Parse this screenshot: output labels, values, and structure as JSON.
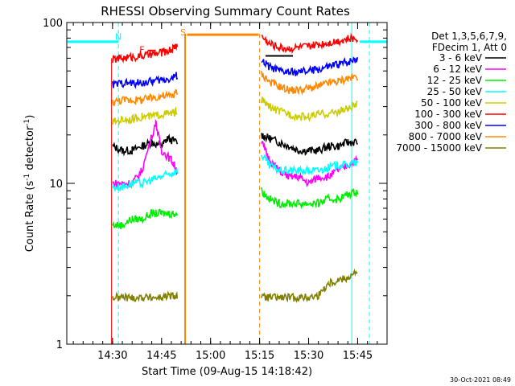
{
  "chart_data": {
    "type": "line",
    "title": "RHESSI Observing Summary Count Rates",
    "xlabel": "Start Time (09-Aug-15 14:18:42)",
    "ylabel": "Count Rate (s⁻¹ detector⁻¹)",
    "ylabel_main": "Count Rate (s",
    "ylabel_sup1": "-1",
    "ylabel_mid": " detector",
    "ylabel_sup2": "-1",
    "ylabel_end": ")",
    "yscale": "log",
    "ylim": [
      1,
      100
    ],
    "xlim_minutes": [
      14.2667,
      15.9
    ],
    "xticks": [
      {
        "label": "14:30",
        "value": 14.5
      },
      {
        "label": "14:45",
        "value": 14.75
      },
      {
        "label": "15:00",
        "value": 15.0
      },
      {
        "label": "15:15",
        "value": 15.25
      },
      {
        "label": "15:30",
        "value": 15.5
      },
      {
        "label": "15:45",
        "value": 15.75
      }
    ],
    "yticks": [
      {
        "label": "1",
        "value": 1
      },
      {
        "label": "10",
        "value": 10
      },
      {
        "label": "100",
        "value": 100
      }
    ],
    "legend_header": [
      "Det 1,3,5,6,7,9,",
      "FDecim 1, Att 0"
    ],
    "legend_position": "right",
    "series": [
      {
        "name": "3 - 6 keV",
        "color": "#000000",
        "seg1": [
          [
            14.5,
            17
          ],
          [
            14.55,
            16
          ],
          [
            14.6,
            16
          ],
          [
            14.65,
            17
          ],
          [
            14.7,
            18
          ],
          [
            14.75,
            17
          ],
          [
            14.78,
            19
          ],
          [
            14.83,
            18
          ]
        ],
        "seg2": [
          [
            15.26,
            20
          ],
          [
            15.3,
            19
          ],
          [
            15.35,
            18
          ],
          [
            15.4,
            17
          ],
          [
            15.45,
            16
          ],
          [
            15.5,
            16
          ],
          [
            15.55,
            16
          ],
          [
            15.6,
            17
          ],
          [
            15.65,
            17
          ],
          [
            15.7,
            18
          ],
          [
            15.75,
            18
          ]
        ]
      },
      {
        "name": "6 - 12 keV",
        "color": "#ff00ff",
        "seg1": [
          [
            14.5,
            10
          ],
          [
            14.55,
            10
          ],
          [
            14.6,
            10
          ],
          [
            14.65,
            12
          ],
          [
            14.72,
            24
          ],
          [
            14.75,
            16
          ],
          [
            14.8,
            14
          ],
          [
            14.83,
            12
          ]
        ],
        "seg2": [
          [
            15.26,
            18
          ],
          [
            15.3,
            14
          ],
          [
            15.35,
            12
          ],
          [
            15.4,
            11
          ],
          [
            15.45,
            11
          ],
          [
            15.5,
            10
          ],
          [
            15.55,
            11
          ],
          [
            15.6,
            11
          ],
          [
            15.65,
            12
          ],
          [
            15.7,
            13
          ],
          [
            15.75,
            14
          ]
        ]
      },
      {
        "name": "12 - 25 keV",
        "color": "#00ee00",
        "seg1": [
          [
            14.5,
            5.5
          ],
          [
            14.55,
            5.5
          ],
          [
            14.6,
            6
          ],
          [
            14.65,
            6
          ],
          [
            14.7,
            6.5
          ],
          [
            14.75,
            6.5
          ],
          [
            14.8,
            6.5
          ],
          [
            14.83,
            6.5
          ]
        ],
        "seg2": [
          [
            15.26,
            9
          ],
          [
            15.3,
            8
          ],
          [
            15.35,
            7.5
          ],
          [
            15.4,
            7.5
          ],
          [
            15.45,
            7.5
          ],
          [
            15.5,
            7.5
          ],
          [
            15.55,
            7.5
          ],
          [
            15.6,
            8
          ],
          [
            15.65,
            8
          ],
          [
            15.7,
            8.5
          ],
          [
            15.75,
            9
          ]
        ]
      },
      {
        "name": "25 - 50 keV",
        "color": "#00ffff",
        "seg1": [
          [
            14.5,
            9.5
          ],
          [
            14.55,
            9.5
          ],
          [
            14.6,
            10
          ],
          [
            14.65,
            10
          ],
          [
            14.7,
            10.5
          ],
          [
            14.75,
            11
          ],
          [
            14.8,
            11.5
          ],
          [
            14.83,
            12
          ]
        ],
        "seg2": [
          [
            15.26,
            15
          ],
          [
            15.3,
            13
          ],
          [
            15.35,
            12
          ],
          [
            15.4,
            12
          ],
          [
            15.45,
            12
          ],
          [
            15.5,
            12
          ],
          [
            15.55,
            12
          ],
          [
            15.6,
            12.5
          ],
          [
            15.65,
            13
          ],
          [
            15.7,
            13
          ],
          [
            15.75,
            13.5
          ]
        ]
      },
      {
        "name": "50 - 100 keV",
        "color": "#cccc00",
        "seg1": [
          [
            14.5,
            24
          ],
          [
            14.55,
            25
          ],
          [
            14.6,
            25
          ],
          [
            14.65,
            26
          ],
          [
            14.7,
            26
          ],
          [
            14.75,
            27
          ],
          [
            14.8,
            27
          ],
          [
            14.83,
            28
          ]
        ],
        "seg2": [
          [
            15.26,
            33
          ],
          [
            15.3,
            30
          ],
          [
            15.35,
            28
          ],
          [
            15.4,
            27
          ],
          [
            15.45,
            26
          ],
          [
            15.5,
            26
          ],
          [
            15.55,
            27
          ],
          [
            15.6,
            27
          ],
          [
            15.65,
            28
          ],
          [
            15.7,
            29
          ],
          [
            15.75,
            31
          ]
        ]
      },
      {
        "name": "100 - 300 keV",
        "color": "#ff0000",
        "seg1": [
          [
            14.5,
            59
          ],
          [
            14.55,
            60
          ],
          [
            14.6,
            61
          ],
          [
            14.65,
            62
          ],
          [
            14.7,
            63
          ],
          [
            14.75,
            65
          ],
          [
            14.8,
            68
          ],
          [
            14.83,
            73
          ]
        ],
        "seg2": [
          [
            15.26,
            82
          ],
          [
            15.3,
            74
          ],
          [
            15.35,
            70
          ],
          [
            15.4,
            69
          ],
          [
            15.45,
            70
          ],
          [
            15.5,
            71
          ],
          [
            15.55,
            73
          ],
          [
            15.6,
            75
          ],
          [
            15.65,
            77
          ],
          [
            15.7,
            79
          ],
          [
            15.75,
            80
          ]
        ]
      },
      {
        "name": "300 - 800 keV",
        "color": "#0000ff",
        "seg1": [
          [
            14.5,
            41
          ],
          [
            14.55,
            42
          ],
          [
            14.6,
            42
          ],
          [
            14.65,
            42
          ],
          [
            14.7,
            43
          ],
          [
            14.75,
            44
          ],
          [
            14.8,
            45
          ],
          [
            14.83,
            47
          ]
        ],
        "seg2": [
          [
            15.26,
            58
          ],
          [
            15.3,
            53
          ],
          [
            15.35,
            50
          ],
          [
            15.4,
            49
          ],
          [
            15.45,
            49
          ],
          [
            15.5,
            50
          ],
          [
            15.55,
            51
          ],
          [
            15.6,
            53
          ],
          [
            15.65,
            55
          ],
          [
            15.7,
            57
          ],
          [
            15.75,
            60
          ]
        ]
      },
      {
        "name": "800 - 7000 keV",
        "color": "#ff8800",
        "seg1": [
          [
            14.5,
            32
          ],
          [
            14.55,
            33
          ],
          [
            14.6,
            33
          ],
          [
            14.65,
            33
          ],
          [
            14.7,
            34
          ],
          [
            14.75,
            35
          ],
          [
            14.8,
            35
          ],
          [
            14.83,
            37
          ]
        ],
        "seg2": [
          [
            15.26,
            48
          ],
          [
            15.3,
            43
          ],
          [
            15.35,
            40
          ],
          [
            15.4,
            38
          ],
          [
            15.45,
            38
          ],
          [
            15.5,
            39
          ],
          [
            15.55,
            40
          ],
          [
            15.6,
            42
          ],
          [
            15.65,
            43
          ],
          [
            15.7,
            45
          ],
          [
            15.75,
            46
          ]
        ]
      },
      {
        "name": "7000 - 15000 keV",
        "color": "#808000",
        "seg1": [
          [
            14.5,
            1.95
          ],
          [
            14.55,
            1.95
          ],
          [
            14.6,
            1.95
          ],
          [
            14.65,
            1.95
          ],
          [
            14.7,
            1.95
          ],
          [
            14.75,
            1.95
          ],
          [
            14.8,
            2.0
          ],
          [
            14.83,
            2.0
          ]
        ],
        "seg2": [
          [
            15.26,
            1.95
          ],
          [
            15.3,
            1.95
          ],
          [
            15.35,
            1.95
          ],
          [
            15.4,
            1.95
          ],
          [
            15.45,
            1.95
          ],
          [
            15.5,
            1.95
          ],
          [
            15.55,
            2.0
          ],
          [
            15.6,
            2.4
          ],
          [
            15.65,
            2.5
          ],
          [
            15.7,
            2.6
          ],
          [
            15.75,
            2.8
          ]
        ]
      }
    ],
    "annotations": [
      {
        "label": "N",
        "color": "#00ffff",
        "x": 14.53,
        "y": 78
      },
      {
        "label": "F",
        "color": "#ff0000",
        "x": 14.65,
        "y": 65
      },
      {
        "label": "S",
        "color": "#ff8800",
        "x": 14.86,
        "y": 83
      }
    ],
    "footer": "30-Oct-2021 08:49"
  }
}
